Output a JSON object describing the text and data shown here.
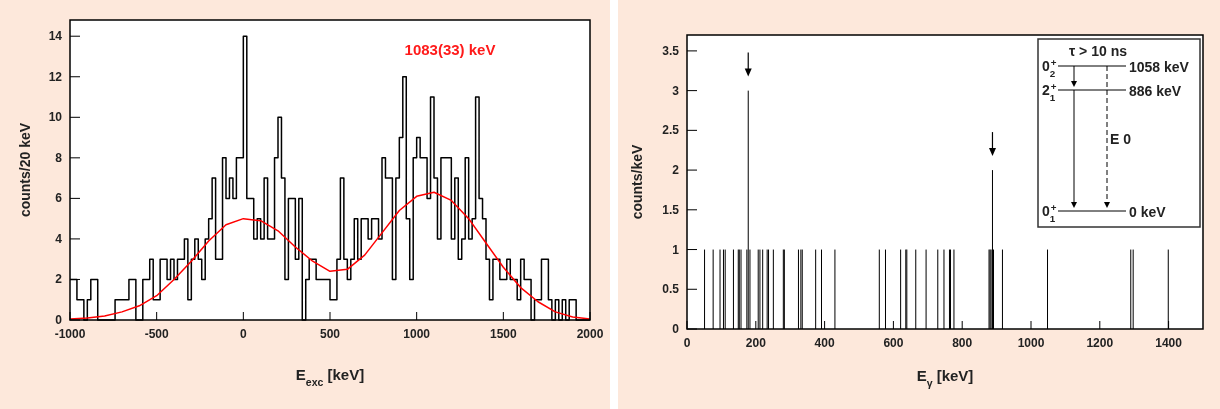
{
  "chart_data": [
    {
      "type": "histogram",
      "xlabel": "E$_{exc}$ [keV]",
      "ylabel": "counts/20 keV",
      "xlim": [
        -1000,
        2000
      ],
      "ylim": [
        0,
        14.8
      ],
      "xticks": [
        -1000,
        -500,
        0,
        500,
        1000,
        1500,
        2000
      ],
      "yticks": [
        0,
        2,
        4,
        6,
        8,
        10,
        12,
        14
      ],
      "annotations": [
        "1083(33) keV"
      ],
      "grid": false,
      "series": [
        {
          "type": "histogram",
          "color": "#000000",
          "bins": [
            -1000,
            -980,
            -960,
            -940,
            -920,
            -900,
            -880,
            -860,
            -840,
            -820,
            -800,
            -780,
            -760,
            -740,
            -720,
            -700,
            -680,
            -660,
            -640,
            -620,
            -600,
            -580,
            -560,
            -540,
            -520,
            -500,
            -480,
            -460,
            -440,
            -420,
            -400,
            -380,
            -360,
            -340,
            -320,
            -300,
            -280,
            -260,
            -240,
            -220,
            -200,
            -180,
            -160,
            -140,
            -120,
            -100,
            -80,
            -60,
            -40,
            -20,
            0,
            20,
            40,
            60,
            80,
            100,
            120,
            140,
            160,
            180,
            200,
            220,
            240,
            260,
            280,
            300,
            320,
            340,
            360,
            380,
            400,
            420,
            440,
            460,
            480,
            500,
            520,
            540,
            560,
            580,
            600,
            620,
            640,
            660,
            680,
            700,
            720,
            740,
            760,
            780,
            800,
            820,
            840,
            860,
            880,
            900,
            920,
            940,
            960,
            980,
            1000,
            1020,
            1040,
            1060,
            1080,
            1100,
            1120,
            1140,
            1160,
            1180,
            1200,
            1220,
            1240,
            1260,
            1280,
            1300,
            1320,
            1340,
            1360,
            1380,
            1400,
            1420,
            1440,
            1460,
            1480,
            1500,
            1520,
            1540,
            1560,
            1580,
            1600,
            1620,
            1640,
            1660,
            1680,
            1700,
            1720,
            1740,
            1760,
            1780,
            1800,
            1820,
            1840,
            1860,
            1880,
            1900,
            1920,
            1940,
            1960,
            1980,
            2000
          ],
          "values": [
            2,
            2,
            1,
            1,
            0,
            1,
            2,
            2,
            0,
            0,
            0,
            0,
            0,
            1,
            1,
            1,
            1,
            2,
            2,
            0,
            0,
            2,
            2,
            3,
            1,
            1,
            3,
            3,
            2,
            3,
            2,
            3,
            3,
            4,
            1,
            3,
            4,
            3,
            2,
            4,
            5,
            7,
            3,
            3,
            8,
            6,
            7,
            6,
            8,
            8,
            14,
            6,
            6,
            4,
            5,
            4,
            7,
            4,
            4,
            8,
            10,
            7,
            2,
            6,
            6,
            3,
            6,
            0,
            2,
            3,
            3,
            2,
            2,
            2,
            2,
            1,
            1,
            3,
            7,
            3,
            2,
            3,
            5,
            3,
            5,
            5,
            4,
            5,
            5,
            4,
            8,
            7,
            7,
            2,
            7,
            9,
            12,
            5,
            2,
            8,
            9,
            8,
            8,
            6,
            11,
            7,
            4,
            8,
            8,
            8,
            4,
            7,
            3,
            4,
            8,
            4,
            5,
            11,
            6,
            5,
            3,
            1,
            3,
            3,
            2,
            2,
            3,
            2,
            2,
            1,
            3,
            2,
            2,
            0,
            1,
            1,
            3,
            3,
            1,
            0,
            1,
            0,
            1,
            0,
            1,
            1,
            0,
            0,
            0,
            0
          ]
        },
        {
          "type": "line",
          "color": "#ff0000",
          "x": [
            -1000,
            -900,
            -800,
            -700,
            -600,
            -500,
            -400,
            -300,
            -200,
            -100,
            0,
            100,
            200,
            300,
            400,
            500,
            600,
            700,
            800,
            900,
            1000,
            1100,
            1200,
            1300,
            1400,
            1500,
            1600,
            1700,
            1800,
            1900,
            2000
          ],
          "values": [
            0.05,
            0.1,
            0.2,
            0.4,
            0.7,
            1.2,
            2,
            2.9,
            3.9,
            4.7,
            5,
            4.9,
            4.4,
            3.6,
            2.9,
            2.4,
            2.5,
            3.2,
            4.3,
            5.4,
            6.1,
            6.3,
            5.9,
            5,
            3.8,
            2.6,
            1.6,
            0.9,
            0.4,
            0.15,
            0.05
          ]
        }
      ]
    },
    {
      "type": "bar",
      "xlabel": "E$_{γ}$ [keV]",
      "ylabel": "counts/keV",
      "xlim": [
        0,
        1500
      ],
      "ylim": [
        0,
        3.7
      ],
      "xticks": [
        0,
        200,
        400,
        600,
        800,
        1000,
        1200,
        1400
      ],
      "yticks": [
        0,
        0.5,
        1,
        1.5,
        2,
        2.5,
        3,
        3.5
      ],
      "grid": false,
      "color": "#000000",
      "annotations": [
        "τ > 10 ns",
        "0$_{2}$$^{+}$",
        "1058 keV",
        "2$_{1}$$^{+}$",
        "886 keV",
        "E 0",
        "0$_{1}$$^{+}$",
        "0 keV"
      ],
      "x": [
        51,
        76,
        96,
        106,
        111,
        135,
        149,
        152,
        157,
        174,
        178,
        183,
        207,
        212,
        220,
        233,
        237,
        251,
        280,
        283,
        324,
        331,
        335,
        374,
        391,
        430,
        559,
        577,
        621,
        636,
        639,
        665,
        695,
        729,
        747,
        763,
        766,
        776,
        878,
        881,
        884,
        888,
        891,
        917,
        1048,
        1290,
        1297,
        1399
      ],
      "values": [
        1,
        1,
        1,
        1,
        1,
        1,
        1,
        1,
        1,
        1,
        3,
        1,
        1,
        1,
        1,
        1,
        1,
        1,
        1,
        1,
        1,
        1,
        1,
        1,
        1,
        1,
        1,
        1,
        1,
        1,
        1,
        1,
        1,
        1,
        1,
        1,
        1,
        1,
        1,
        1,
        1,
        2,
        1,
        1,
        1,
        1,
        1,
        1
      ]
    }
  ]
}
